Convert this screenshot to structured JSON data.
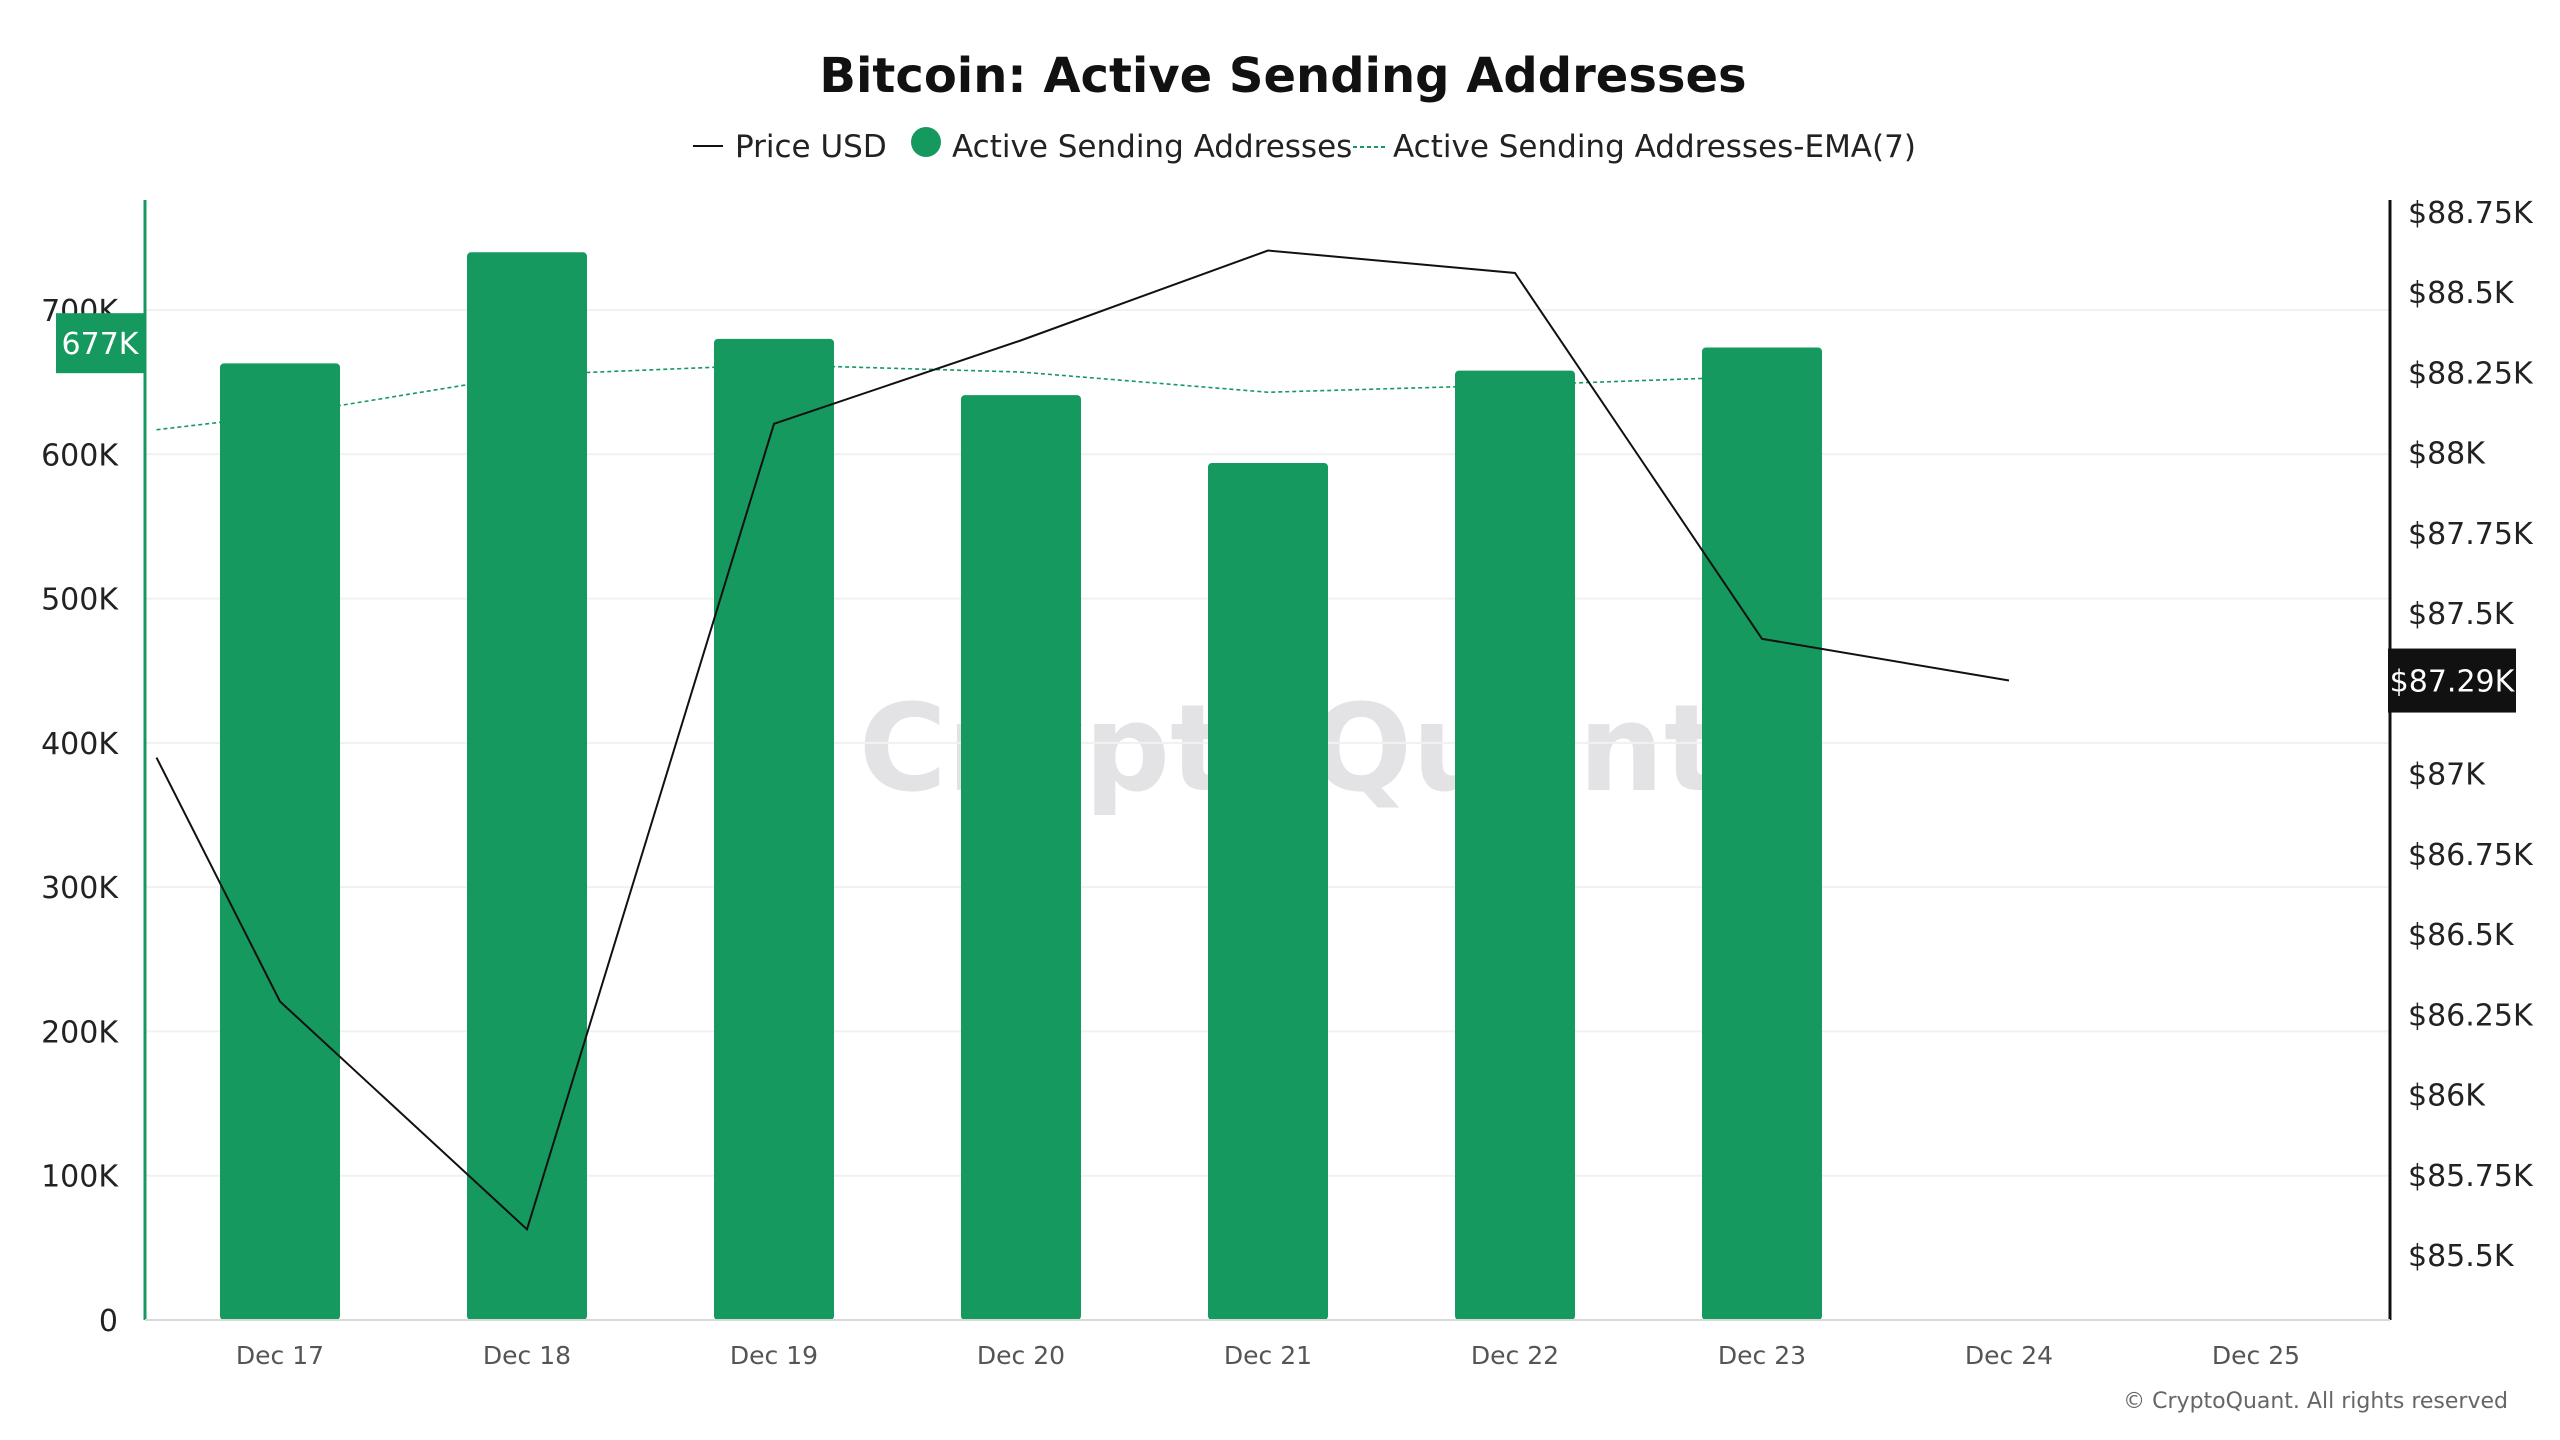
{
  "chart_data": {
    "type": "bar",
    "title": "Bitcoin: Active Sending Addresses",
    "legend": [
      {
        "name": "Price USD",
        "style": "line",
        "color": "#111111"
      },
      {
        "name": "Active Sending Addresses",
        "style": "dot",
        "color": "#16995f"
      },
      {
        "name": "Active Sending Addresses-EMA(7)",
        "style": "dashed-line",
        "color": "#16995f"
      }
    ],
    "legend_placement": "top-center",
    "categories": [
      "Dec 17",
      "Dec 18",
      "Dec 19",
      "Dec 20",
      "Dec 21",
      "Dec 22",
      "Dec 23",
      "Dec 24",
      "Dec 25"
    ],
    "series": [
      {
        "name": "Active Sending Addresses",
        "type": "bar",
        "axis": "left",
        "color": "#16995f",
        "values": [
          663000,
          740000,
          680000,
          641000,
          594000,
          658000,
          674000,
          null,
          null
        ]
      },
      {
        "name": "Active Sending Addresses-EMA(7)",
        "type": "line",
        "dashed": true,
        "axis": "left",
        "color": "#16995f",
        "x": [
          "Dec 16.5",
          "Dec 17",
          "Dec 18",
          "Dec 19",
          "Dec 20",
          "Dec 21",
          "Dec 22",
          "Dec 23"
        ],
        "values": [
          617000,
          627000,
          655000,
          662000,
          657000,
          643000,
          648000,
          654000
        ]
      },
      {
        "name": "Price USD",
        "type": "line",
        "axis": "right",
        "color": "#111111",
        "x": [
          "Dec 16.5",
          "Dec 17",
          "Dec 18",
          "Dec 19",
          "Dec 20",
          "Dec 21",
          "Dec 22",
          "Dec 23",
          "Dec 24"
        ],
        "values": [
          87050,
          86290,
          85580,
          88090,
          88350,
          88630,
          88560,
          87420,
          87290
        ]
      }
    ],
    "left_axis": {
      "ticks": [
        "0",
        "100K",
        "200K",
        "300K",
        "400K",
        "500K",
        "600K",
        "700K"
      ],
      "tick_values": [
        0,
        100000,
        200000,
        300000,
        400000,
        500000,
        600000,
        700000
      ],
      "ylim": [
        0,
        700000
      ]
    },
    "right_axis": {
      "ticks": [
        "$85.5K",
        "$85.75K",
        "$86K",
        "$86.25K",
        "$86.5K",
        "$86.75K",
        "$87K",
        "$87.5K",
        "$87.75K",
        "$88K",
        "$88.25K",
        "$88.5K",
        "$88.75K"
      ],
      "tick_values": [
        85500,
        85750,
        86000,
        86250,
        86500,
        86750,
        87000,
        87500,
        87750,
        88000,
        88250,
        88500,
        88750
      ],
      "ylim": [
        85500,
        88750
      ]
    },
    "badges": {
      "left": {
        "label": "677K",
        "value": 677000,
        "color": "#16995f"
      },
      "right": {
        "label": "$87.29K",
        "value": 87290,
        "color": "#111111"
      }
    },
    "grid": true,
    "watermark": "CryptoQuant",
    "copyright": "© CryptoQuant. All rights reserved"
  }
}
